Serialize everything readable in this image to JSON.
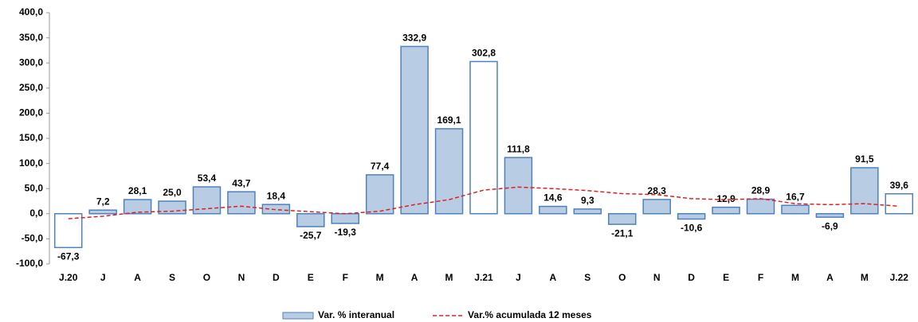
{
  "chart_data": {
    "type": "bar",
    "categories": [
      "J.20",
      "J",
      "A",
      "S",
      "O",
      "N",
      "D",
      "E",
      "F",
      "M",
      "A",
      "M",
      "J.21",
      "J",
      "A",
      "S",
      "O",
      "N",
      "D",
      "E",
      "F",
      "M",
      "A",
      "M",
      "J.22"
    ],
    "series": [
      {
        "name": "Var. % interanual",
        "type": "bar",
        "color": "#4f81bd",
        "values": [
          -67.3,
          7.2,
          28.1,
          25.0,
          53.4,
          43.7,
          18.4,
          -25.7,
          -19.3,
          77.4,
          332.9,
          169.1,
          302.8,
          111.8,
          14.6,
          9.3,
          -21.1,
          28.3,
          -10.6,
          12.9,
          28.9,
          16.7,
          -6.9,
          91.5,
          39.6
        ],
        "value_labels": [
          "-67,3",
          "7,2",
          "28,1",
          "25,0",
          "53,4",
          "43,7",
          "18,4",
          "-25,7",
          "-19,3",
          "77,4",
          "332,9",
          "169,1",
          "302,8",
          "111,8",
          "14,6",
          "9,3",
          "-21,1",
          "28,3",
          "-10,6",
          "12,9",
          "28,9",
          "16,7",
          "-6,9",
          "91,5",
          "39,6"
        ],
        "fills": [
          "#ffffff",
          "#b8cce4",
          "#b8cce4",
          "#b8cce4",
          "#b8cce4",
          "#b8cce4",
          "#b8cce4",
          "#b8cce4",
          "#b8cce4",
          "#b8cce4",
          "#b8cce4",
          "#b8cce4",
          "#ffffff",
          "#b8cce4",
          "#b8cce4",
          "#b8cce4",
          "#b8cce4",
          "#b8cce4",
          "#b8cce4",
          "#b8cce4",
          "#b8cce4",
          "#b8cce4",
          "#b8cce4",
          "#b8cce4",
          "#ffffff"
        ]
      },
      {
        "name": "Var.% acumulada 12 meses",
        "type": "line",
        "color": "#e02020",
        "dashed": true,
        "values": [
          -10,
          -5,
          3,
          5,
          10,
          15,
          8,
          4,
          0,
          5,
          18,
          28,
          47,
          53,
          50,
          46,
          40,
          38,
          30,
          28,
          30,
          20,
          18,
          20,
          15
        ]
      }
    ],
    "ylim": [
      -100,
      400
    ],
    "yticks": [
      {
        "value": -100,
        "label": "-100,0"
      },
      {
        "value": -50,
        "label": "-50,0"
      },
      {
        "value": 0,
        "label": "0,0"
      },
      {
        "value": 50,
        "label": "50,0"
      },
      {
        "value": 100,
        "label": "100,0"
      },
      {
        "value": 150,
        "label": "150,0"
      },
      {
        "value": 200,
        "label": "200,0"
      },
      {
        "value": 250,
        "label": "250,0"
      },
      {
        "value": 300,
        "label": "300,0"
      },
      {
        "value": 350,
        "label": "350,0"
      },
      {
        "value": 400,
        "label": "400,0"
      }
    ],
    "legend": "bottom"
  }
}
